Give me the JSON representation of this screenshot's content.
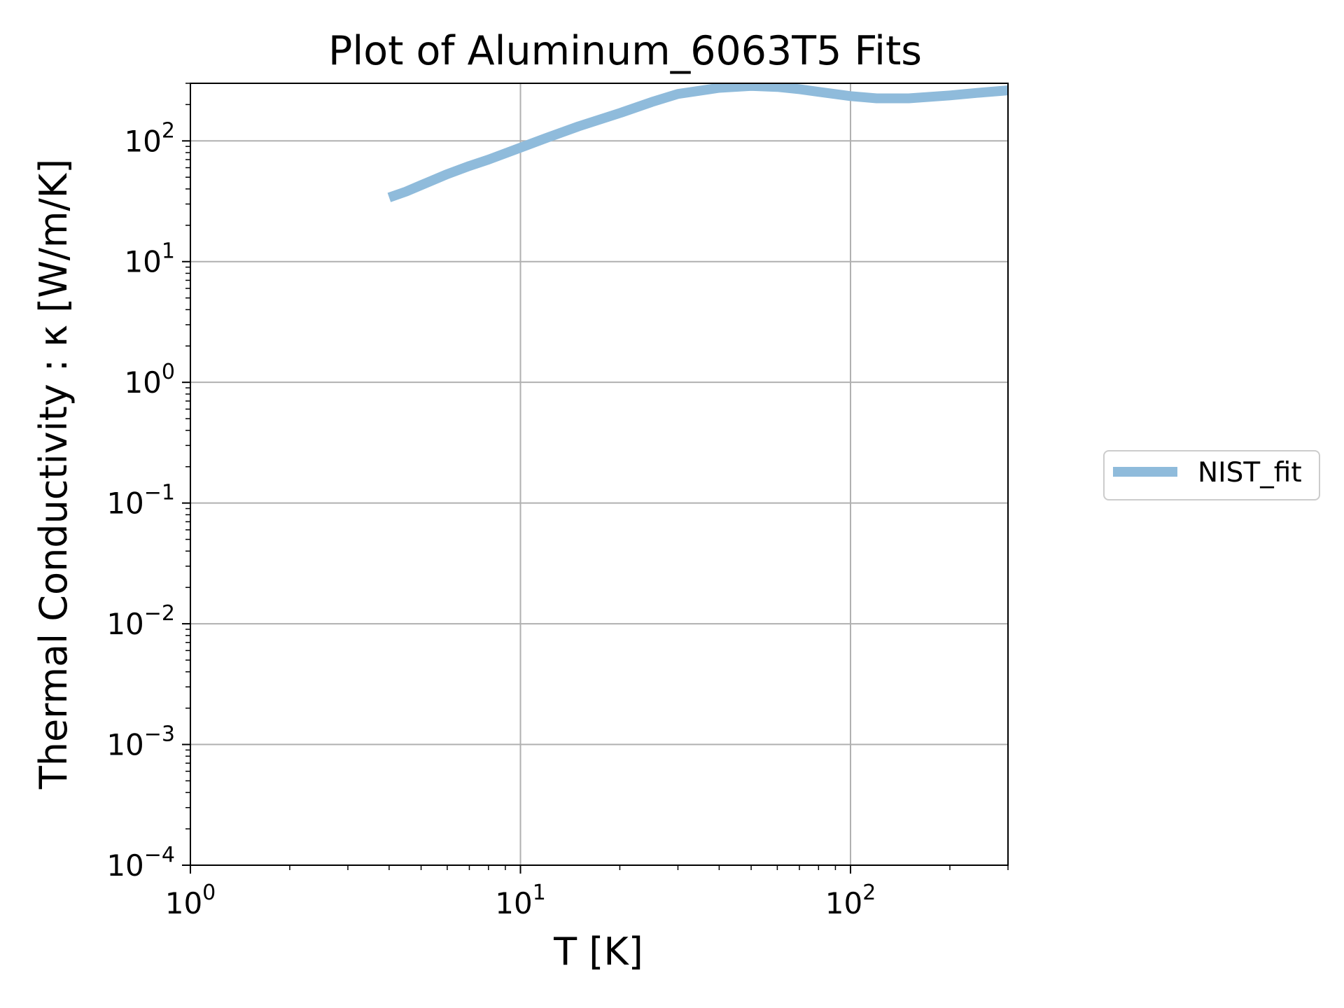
{
  "chart_data": {
    "type": "line",
    "title": "Plot of Aluminum_6063T5 Fits",
    "xlabel": "T [K]",
    "ylabel": "Thermal Conductivity : κ [W/m/K]",
    "xscale": "log",
    "yscale": "log",
    "xlim": [
      1,
      300
    ],
    "ylim": [
      0.0001,
      300
    ],
    "grid": true,
    "legend_position": "right (outside plot)",
    "x_ticks": [
      {
        "value": 1,
        "base": "10",
        "exp": "0"
      },
      {
        "value": 10,
        "base": "10",
        "exp": "1"
      },
      {
        "value": 100,
        "base": "10",
        "exp": "2"
      }
    ],
    "y_ticks": [
      {
        "value": 0.0001,
        "base": "10",
        "exp": "−4"
      },
      {
        "value": 0.001,
        "base": "10",
        "exp": "−3"
      },
      {
        "value": 0.01,
        "base": "10",
        "exp": "−2"
      },
      {
        "value": 0.1,
        "base": "10",
        "exp": "−1"
      },
      {
        "value": 1,
        "base": "10",
        "exp": "0"
      },
      {
        "value": 10,
        "base": "10",
        "exp": "1"
      },
      {
        "value": 100,
        "base": "10",
        "exp": "2"
      }
    ],
    "series": [
      {
        "name": "NIST_fit",
        "color": "#8fbbdb",
        "x": [
          4,
          4.5,
          5,
          6,
          7,
          8,
          10,
          12,
          15,
          20,
          25,
          30,
          40,
          50,
          60,
          70,
          80,
          100,
          120,
          150,
          200,
          250,
          300
        ],
        "y": [
          34,
          38,
          43,
          53,
          62,
          70,
          88,
          106,
          132,
          170,
          210,
          245,
          275,
          285,
          280,
          268,
          255,
          235,
          225,
          225,
          238,
          252,
          262
        ]
      }
    ]
  }
}
